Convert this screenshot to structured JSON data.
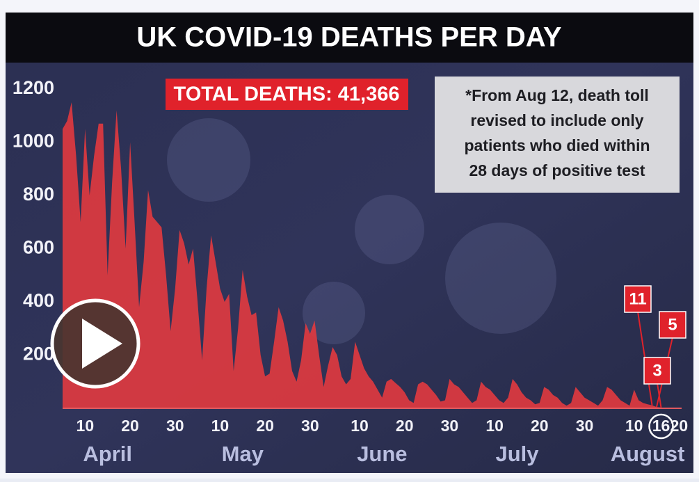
{
  "chart_data": {
    "type": "area",
    "title": "UK COVID-19 DEATHS PER DAY",
    "badge": "TOTAL DEATHS: 41,366",
    "note": [
      "*From Aug 12, death toll",
      "revised to include only",
      "patients who died within",
      "28 days of positive test"
    ],
    "months": [
      "April",
      "May",
      "June",
      "July",
      "August"
    ],
    "categories": [
      null,
      null,
      null,
      null,
      null,
      "10",
      null,
      null,
      null,
      null,
      null,
      null,
      null,
      null,
      null,
      "20",
      null,
      null,
      null,
      null,
      null,
      null,
      null,
      null,
      null,
      "30",
      null,
      null,
      null,
      null,
      null,
      null,
      null,
      null,
      null,
      "10",
      null,
      null,
      null,
      null,
      null,
      null,
      null,
      null,
      null,
      "20",
      null,
      null,
      null,
      null,
      null,
      null,
      null,
      null,
      null,
      "30",
      null,
      null,
      null,
      null,
      null,
      null,
      null,
      null,
      null,
      null,
      "10",
      null,
      null,
      null,
      null,
      null,
      null,
      null,
      null,
      null,
      "20",
      null,
      null,
      null,
      null,
      null,
      null,
      null,
      null,
      null,
      "30",
      null,
      null,
      null,
      null,
      null,
      null,
      null,
      null,
      null,
      "10",
      null,
      null,
      null,
      null,
      null,
      null,
      null,
      null,
      null,
      "20",
      null,
      null,
      null,
      null,
      null,
      null,
      null,
      null,
      null,
      "30",
      null,
      null,
      null,
      null,
      null,
      null,
      null,
      null,
      null,
      null,
      "10",
      null,
      null,
      null,
      null,
      null,
      "16",
      null,
      null,
      null,
      "20"
    ],
    "values": [
      1050,
      1080,
      1150,
      950,
      700,
      1050,
      800,
      950,
      1070,
      1070,
      500,
      850,
      1120,
      900,
      600,
      1000,
      700,
      380,
      550,
      820,
      720,
      700,
      680,
      500,
      290,
      450,
      670,
      620,
      540,
      600,
      400,
      180,
      450,
      650,
      550,
      450,
      400,
      430,
      140,
      300,
      520,
      420,
      350,
      360,
      200,
      120,
      130,
      250,
      380,
      330,
      250,
      140,
      100,
      180,
      320,
      280,
      330,
      200,
      80,
      160,
      230,
      200,
      120,
      90,
      110,
      250,
      200,
      150,
      120,
      100,
      70,
      40,
      100,
      110,
      95,
      80,
      60,
      30,
      20,
      90,
      100,
      90,
      70,
      50,
      25,
      30,
      110,
      90,
      80,
      60,
      40,
      20,
      30,
      100,
      80,
      70,
      50,
      30,
      20,
      40,
      110,
      90,
      60,
      40,
      30,
      15,
      20,
      80,
      70,
      50,
      40,
      20,
      10,
      20,
      80,
      60,
      40,
      30,
      20,
      10,
      30,
      80,
      70,
      50,
      30,
      20,
      10,
      70,
      30,
      20,
      15,
      11,
      5,
      3,
      null,
      null,
      null,
      null
    ],
    "color": "#e23a3f",
    "label_last_points": 3,
    "ylim": [
      0,
      1200
    ],
    "yticks": [
      200,
      400,
      600,
      800,
      1000,
      1200
    ],
    "grid": false
  }
}
